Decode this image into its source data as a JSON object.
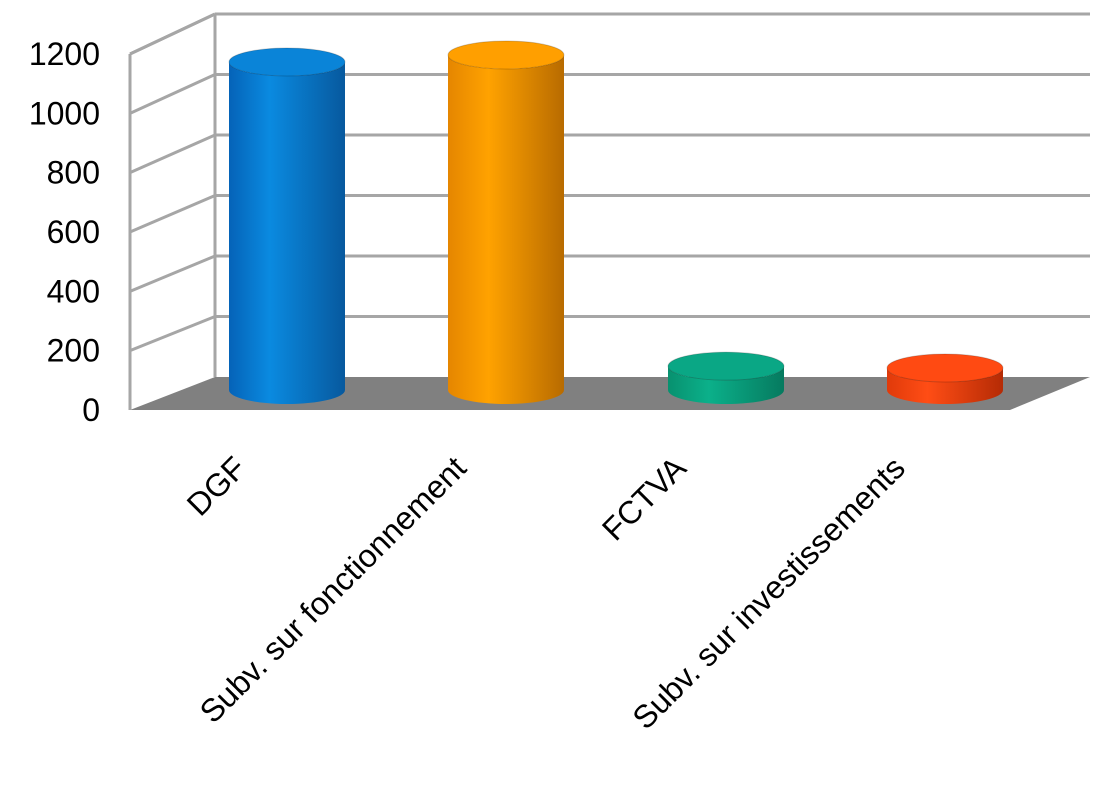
{
  "chart_data": {
    "type": "bar",
    "style": "3d-cylinder",
    "categories": [
      "DGF",
      "Subv. sur fonctionnement",
      "FCTVA",
      "Subv. sur investissements"
    ],
    "values": [
      1170,
      1195,
      85,
      70
    ],
    "ylim": [
      0,
      1200
    ],
    "yticks": [
      "0",
      "200",
      "400",
      "600",
      "800",
      "1000",
      "1200"
    ],
    "title": "",
    "xlabel": "",
    "ylabel": "",
    "grid": true,
    "legend": "none",
    "colors": [
      "#0a84d8",
      "#ff9f00",
      "#0aa785",
      "#ff4a12"
    ],
    "floor_color": "#808080",
    "grid_color": "#a6a6a6"
  }
}
